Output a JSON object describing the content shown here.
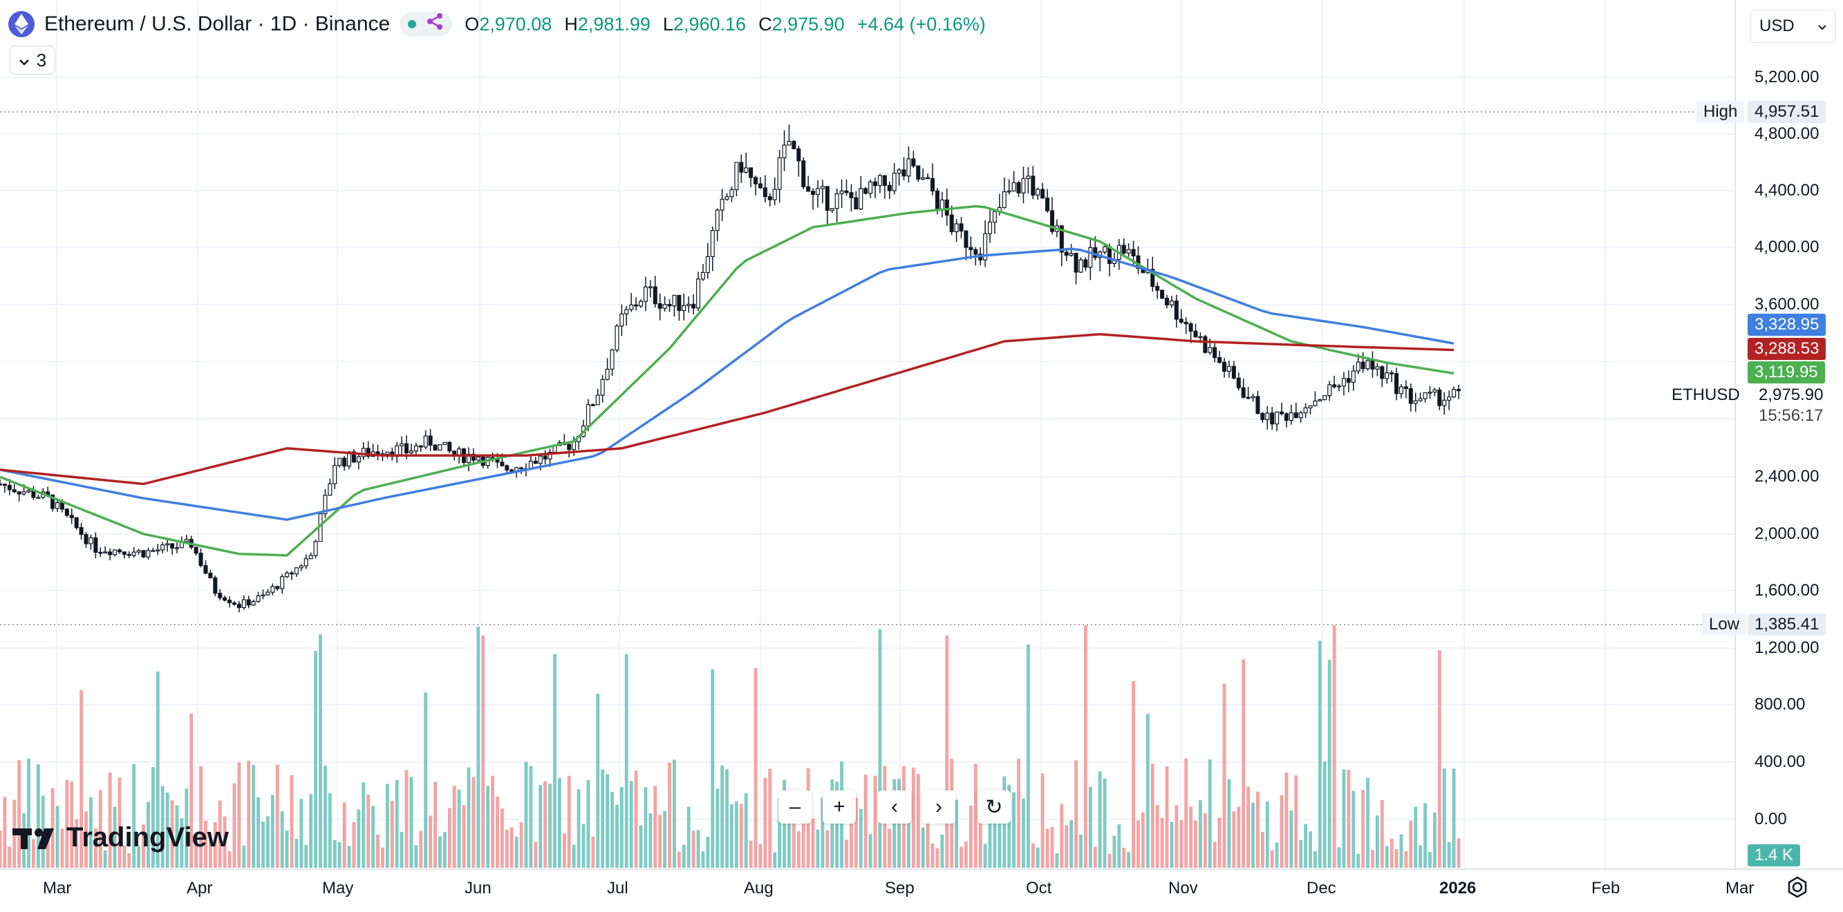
{
  "header": {
    "title": "Ethereum / U.S. Dollar · 1D · Binance",
    "ohlc": {
      "o_label": "O",
      "o": "2,970.08",
      "h_label": "H",
      "h": "2,981.99",
      "l_label": "L",
      "l": "2,960.16",
      "c_label": "C",
      "c": "2,975.90",
      "change": "+4.64 (+0.16%)"
    },
    "indicator_count": "3",
    "currency": "USD"
  },
  "colors": {
    "up": "#089981",
    "down": "#f23645",
    "ma_fast": "#4caf50",
    "ma_mid": "#3f7fe0",
    "ma_slow": "#b22222",
    "vol_up": "#7ecbc4",
    "vol_down": "#f5a3a3"
  },
  "price_axis": {
    "ticks": [
      "5,200.00",
      "4,800.00",
      "4,400.00",
      "4,000.00",
      "3,600.00",
      "2,400.00",
      "2,000.00",
      "1,600.00",
      "1,200.00",
      "800.00",
      "400.00",
      "0.00"
    ],
    "high_label": "High",
    "high_value": "4,957.51",
    "low_label": "Low",
    "low_value": "1,385.41",
    "ma_tags": [
      "3,328.95",
      "3,288.53",
      "3,119.95"
    ],
    "symbol": "ETHUSD",
    "last_price": "2,975.90",
    "countdown": "15:56:17",
    "volume_tag": "1.4 K"
  },
  "time_axis": [
    "Mar",
    "Apr",
    "May",
    "Jun",
    "Jul",
    "Aug",
    "Sep",
    "Oct",
    "Nov",
    "Dec",
    "2026",
    "Feb",
    "Mar"
  ],
  "chart_data": {
    "type": "candlestick",
    "months_shown": [
      "Mar",
      "Apr",
      "May",
      "Jun",
      "Jul",
      "Aug",
      "Sep",
      "Oct",
      "Nov",
      "Dec"
    ],
    "close_path": [
      [
        0,
        2350
      ],
      [
        10,
        2250
      ],
      [
        20,
        1900
      ],
      [
        30,
        1870
      ],
      [
        40,
        1930
      ],
      [
        45,
        1600
      ],
      [
        50,
        1500
      ],
      [
        55,
        1560
      ],
      [
        60,
        1700
      ],
      [
        65,
        1850
      ],
      [
        70,
        2500
      ],
      [
        75,
        2550
      ],
      [
        80,
        2600
      ],
      [
        85,
        2580
      ],
      [
        90,
        2650
      ],
      [
        95,
        2550
      ],
      [
        100,
        2550
      ],
      [
        105,
        2450
      ],
      [
        110,
        2500
      ],
      [
        115,
        2550
      ],
      [
        120,
        2650
      ],
      [
        125,
        3000
      ],
      [
        130,
        3500
      ],
      [
        135,
        3700
      ],
      [
        140,
        3600
      ],
      [
        145,
        3650
      ],
      [
        150,
        4200
      ],
      [
        155,
        4600
      ],
      [
        160,
        4300
      ],
      [
        165,
        4750
      ],
      [
        170,
        4350
      ],
      [
        175,
        4350
      ],
      [
        180,
        4350
      ],
      [
        185,
        4450
      ],
      [
        190,
        4550
      ],
      [
        195,
        4400
      ],
      [
        200,
        4100
      ],
      [
        205,
        4000
      ],
      [
        210,
        4350
      ],
      [
        215,
        4500
      ],
      [
        220,
        4150
      ],
      [
        225,
        3900
      ],
      [
        230,
        3950
      ],
      [
        235,
        4000
      ],
      [
        240,
        3800
      ],
      [
        245,
        3600
      ],
      [
        250,
        3400
      ],
      [
        255,
        3200
      ],
      [
        260,
        3000
      ],
      [
        265,
        2800
      ],
      [
        270,
        2850
      ],
      [
        275,
        2950
      ],
      [
        280,
        3050
      ],
      [
        285,
        3200
      ],
      [
        290,
        3100
      ],
      [
        295,
        2950
      ],
      [
        300,
        2950
      ],
      [
        305,
        2975.9
      ]
    ],
    "ma_fast": [
      [
        0,
        2400
      ],
      [
        30,
        2000
      ],
      [
        50,
        1860
      ],
      [
        60,
        1850
      ],
      [
        75,
        2300
      ],
      [
        100,
        2500
      ],
      [
        120,
        2650
      ],
      [
        140,
        3300
      ],
      [
        155,
        3900
      ],
      [
        170,
        4150
      ],
      [
        190,
        4250
      ],
      [
        205,
        4300
      ],
      [
        215,
        4200
      ],
      [
        230,
        4050
      ],
      [
        250,
        3650
      ],
      [
        270,
        3350
      ],
      [
        290,
        3200
      ],
      [
        305,
        3119.95
      ]
    ],
    "ma_mid": [
      [
        0,
        2450
      ],
      [
        30,
        2250
      ],
      [
        60,
        2100
      ],
      [
        80,
        2250
      ],
      [
        110,
        2450
      ],
      [
        125,
        2550
      ],
      [
        145,
        3000
      ],
      [
        165,
        3500
      ],
      [
        185,
        3850
      ],
      [
        205,
        3950
      ],
      [
        225,
        4000
      ],
      [
        245,
        3800
      ],
      [
        265,
        3550
      ],
      [
        285,
        3450
      ],
      [
        305,
        3328.95
      ]
    ],
    "ma_slow": [
      [
        0,
        2450
      ],
      [
        30,
        2350
      ],
      [
        60,
        2600
      ],
      [
        80,
        2550
      ],
      [
        110,
        2550
      ],
      [
        130,
        2600
      ],
      [
        160,
        2850
      ],
      [
        185,
        3100
      ],
      [
        210,
        3350
      ],
      [
        230,
        3400
      ],
      [
        250,
        3350
      ],
      [
        275,
        3320
      ],
      [
        305,
        3288.53
      ]
    ],
    "high": 4957.51,
    "low": 1385.41,
    "last": 2975.9,
    "volume_max_label": "1.4 K"
  },
  "nav": {
    "zoom_out": "–",
    "zoom_in": "+",
    "left": "‹",
    "right": "›",
    "reset": "↻"
  },
  "brand": "TradingView"
}
